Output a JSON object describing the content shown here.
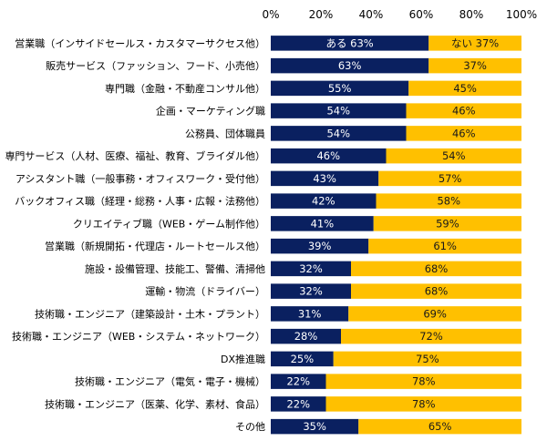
{
  "chart_data": {
    "type": "bar",
    "orientation": "horizontal",
    "stacked": true,
    "xlim": [
      0,
      100
    ],
    "x_ticks": [
      "0%",
      "20%",
      "40%",
      "60%",
      "80%",
      "100%"
    ],
    "grid": false,
    "colors": {
      "yes": "#0a2060",
      "no": "#ffc000"
    },
    "first_row_labels": {
      "yes": "ある 63%",
      "no": "ない 37%"
    },
    "categories": [
      "営業職（インサイドセールス・カスタマーサクセス他）",
      "販売サービス（ファッション、フード、小売他）",
      "専門職（金融・不動産コンサル他）",
      "企画・マーケティング職",
      "公務員、団体職員",
      "専門サービス（人材、医療、福祉、教育、ブライダル他）",
      "アシスタント職（一般事務・オフィスワーク・受付他）",
      "バックオフィス職（経理・総務・人事・広報・法務他）",
      "クリエイティブ職（WEB・ゲーム制作他）",
      "営業職（新規開拓・代理店・ルートセールス他）",
      "施設・設備管理、技能工、警備、清掃他",
      "運輸・物流（ドライバー）",
      "技術職・エンジニア（建築設計・土木・プラント）",
      "技術職・エンジニア（WEB・システム・ネットワーク）",
      "DX推進職",
      "技術職・エンジニア（電気・電子・機械）",
      "技術職・エンジニア（医薬、化学、素材、食品）",
      "その他"
    ],
    "series": [
      {
        "name": "ある",
        "values": [
          63,
          63,
          55,
          54,
          54,
          46,
          43,
          42,
          41,
          39,
          32,
          32,
          31,
          28,
          25,
          22,
          22,
          35
        ]
      },
      {
        "name": "ない",
        "values": [
          37,
          37,
          45,
          46,
          46,
          54,
          57,
          58,
          59,
          61,
          68,
          68,
          69,
          72,
          75,
          78,
          78,
          65
        ]
      }
    ]
  }
}
